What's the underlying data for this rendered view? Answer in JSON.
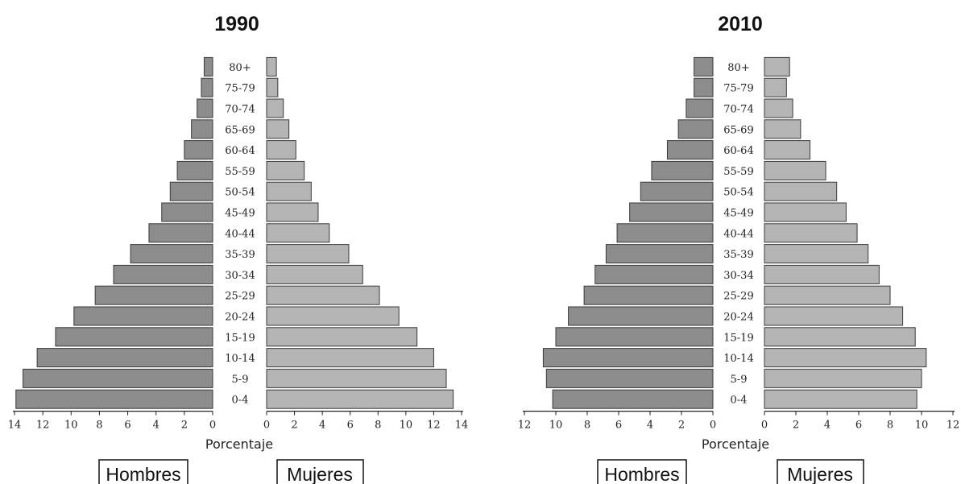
{
  "chart_data": [
    {
      "type": "bar",
      "title": "1990",
      "xlabel": "Porcentaje",
      "age_groups": [
        "0-4",
        "5-9",
        "10-14",
        "15-19",
        "20-24",
        "25-29",
        "30-34",
        "35-39",
        "40-44",
        "45-49",
        "50-54",
        "55-59",
        "60-64",
        "65-69",
        "70-74",
        "75-79",
        "80+"
      ],
      "xlim": [
        0,
        14
      ],
      "xticks": [
        14,
        12,
        10,
        8,
        6,
        4,
        2,
        0
      ],
      "series": [
        {
          "name": "Hombres",
          "color": "#8c8c8c",
          "values": [
            13.9,
            13.4,
            12.4,
            11.1,
            9.8,
            8.3,
            7.0,
            5.8,
            4.5,
            3.6,
            3.0,
            2.5,
            2.0,
            1.5,
            1.1,
            0.8,
            0.6
          ]
        },
        {
          "name": "Mujeres",
          "color": "#b4b4b4",
          "values": [
            13.4,
            12.9,
            12.0,
            10.8,
            9.5,
            8.1,
            6.9,
            5.9,
            4.5,
            3.7,
            3.2,
            2.7,
            2.1,
            1.6,
            1.2,
            0.8,
            0.7
          ]
        }
      ]
    },
    {
      "type": "bar",
      "title": "2010",
      "xlabel": "Porcentaje",
      "age_groups": [
        "0-4",
        "5-9",
        "10-14",
        "15-19",
        "20-24",
        "25-29",
        "30-34",
        "35-39",
        "40-44",
        "45-49",
        "50-54",
        "55-59",
        "60-64",
        "65-69",
        "70-74",
        "75-79",
        "80+"
      ],
      "xlim": [
        0,
        12
      ],
      "xticks": [
        12,
        10,
        8,
        6,
        4,
        2,
        0
      ],
      "series": [
        {
          "name": "Hombres",
          "color": "#8c8c8c",
          "values": [
            10.2,
            10.6,
            10.8,
            10.0,
            9.2,
            8.2,
            7.5,
            6.8,
            6.1,
            5.3,
            4.6,
            3.9,
            2.9,
            2.2,
            1.7,
            1.2,
            1.2
          ]
        },
        {
          "name": "Mujeres",
          "color": "#b4b4b4",
          "values": [
            9.7,
            10.0,
            10.3,
            9.6,
            8.8,
            8.0,
            7.3,
            6.6,
            5.9,
            5.2,
            4.6,
            3.9,
            2.9,
            2.3,
            1.8,
            1.4,
            1.6
          ]
        }
      ]
    }
  ]
}
